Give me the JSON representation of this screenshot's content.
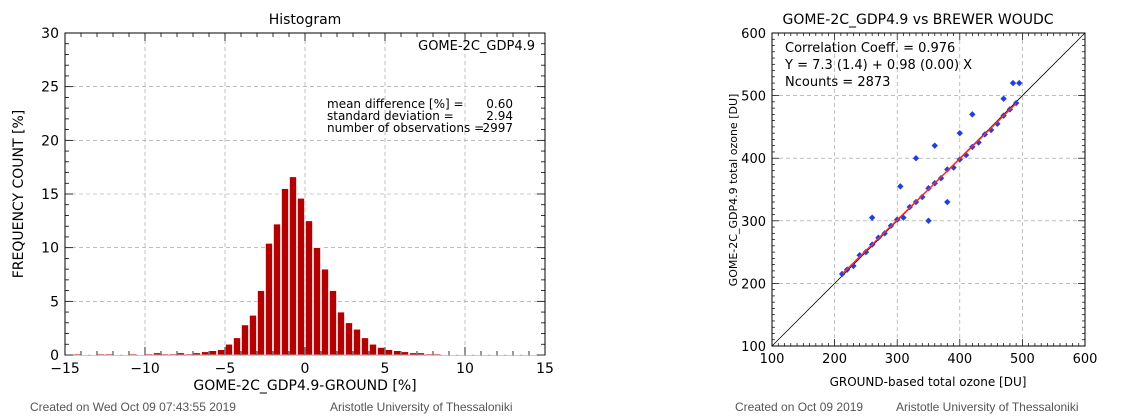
{
  "chart_data": [
    {
      "type": "bar",
      "title": "Histogram",
      "label": "GOME-2C_GDP4.9",
      "xlabel": "GOME-2C_GDP4.9-GROUND [%]",
      "ylabel": "FREQUENCY COUNT [%]",
      "xlim": [
        -15,
        15
      ],
      "ylim": [
        0,
        30
      ],
      "xticks": [
        -15,
        -10,
        -5,
        0,
        5,
        10,
        15
      ],
      "yticks": [
        0,
        5,
        10,
        15,
        20,
        25,
        30
      ],
      "bar_width": 0.5,
      "color": "#b30000",
      "x": [
        -14.75,
        -14.25,
        -13.75,
        -13.25,
        -12.75,
        -12.25,
        -11.75,
        -11.25,
        -10.75,
        -10.25,
        -9.75,
        -9.25,
        -8.75,
        -8.25,
        -7.75,
        -7.25,
        -6.75,
        -6.25,
        -5.75,
        -5.25,
        -4.75,
        -4.25,
        -3.75,
        -3.25,
        -2.75,
        -2.25,
        -1.75,
        -1.25,
        -0.75,
        -0.25,
        0.25,
        0.75,
        1.25,
        1.75,
        2.25,
        2.75,
        3.25,
        3.75,
        4.25,
        4.75,
        5.25,
        5.75,
        6.25,
        6.75,
        7.25,
        7.75,
        8.25,
        8.75,
        9.25,
        9.75,
        10.25,
        10.75,
        11.25,
        11.75,
        12.25,
        12.75,
        13.25,
        13.75,
        14.25,
        14.75
      ],
      "values": [
        0.05,
        0.1,
        0.05,
        0.05,
        0.1,
        0.1,
        0.05,
        0.05,
        0.1,
        0.05,
        0.1,
        0.2,
        0.1,
        0.1,
        0.2,
        0.1,
        0.2,
        0.3,
        0.4,
        0.5,
        1.0,
        1.6,
        2.8,
        3.7,
        6.0,
        10.4,
        12.2,
        15.5,
        16.6,
        14.6,
        12.5,
        10.0,
        8.0,
        6.0,
        4.0,
        3.0,
        2.4,
        1.6,
        1.0,
        0.7,
        0.5,
        0.4,
        0.3,
        0.2,
        0.2,
        0.1,
        0.1,
        0.05,
        0.05,
        0.05,
        0.05,
        0.05,
        0.05,
        0.05,
        0.05,
        0.05,
        0.05,
        0.05,
        0.05,
        0.05
      ],
      "stats": [
        {
          "label": "mean difference [%] =",
          "value": "0.60"
        },
        {
          "label": "standard deviation =",
          "value": "2.94"
        },
        {
          "label": "number of observations =",
          "value": "2997"
        }
      ],
      "footer_left": "Created on Wed Oct 09 07:43:55 2019",
      "footer_right": "Aristotle University of Thessaloniki"
    },
    {
      "type": "scatter",
      "title": "GOME-2C_GDP4.9  vs  BREWER WOUDC",
      "xlabel": "GROUND-based total ozone [DU]",
      "ylabel": "GOME-2C_GDP4.9 total ozone [DU]",
      "xlim": [
        100,
        600
      ],
      "ylim": [
        100,
        600
      ],
      "xticks": [
        100,
        200,
        300,
        400,
        500,
        600
      ],
      "yticks": [
        100,
        200,
        300,
        400,
        500,
        600
      ],
      "grid": true,
      "point_color": "#1f3fe0",
      "fit_color": "#ff2a2a",
      "fit": {
        "intercept": 7.3,
        "slope": 0.98,
        "x_range": [
          213,
          490
        ]
      },
      "points_sample": [
        [
          212,
          215
        ],
        [
          220,
          222
        ],
        [
          230,
          228
        ],
        [
          240,
          245
        ],
        [
          250,
          250
        ],
        [
          260,
          262
        ],
        [
          270,
          273
        ],
        [
          280,
          280
        ],
        [
          290,
          292
        ],
        [
          300,
          302
        ],
        [
          310,
          305
        ],
        [
          320,
          322
        ],
        [
          330,
          330
        ],
        [
          340,
          338
        ],
        [
          350,
          352
        ],
        [
          360,
          360
        ],
        [
          370,
          368
        ],
        [
          380,
          382
        ],
        [
          390,
          385
        ],
        [
          400,
          398
        ],
        [
          410,
          405
        ],
        [
          420,
          418
        ],
        [
          430,
          425
        ],
        [
          440,
          438
        ],
        [
          450,
          445
        ],
        [
          460,
          455
        ],
        [
          470,
          468
        ],
        [
          480,
          478
        ],
        [
          490,
          488
        ],
        [
          495,
          520
        ],
        [
          485,
          520
        ],
        [
          470,
          495
        ],
        [
          330,
          400
        ],
        [
          305,
          355
        ],
        [
          360,
          420
        ],
        [
          380,
          330
        ],
        [
          400,
          440
        ],
        [
          350,
          300
        ],
        [
          420,
          470
        ],
        [
          260,
          305
        ]
      ],
      "annotations": [
        "Correlation Coeff. = 0.976",
        "Y = 7.3 (1.4) + 0.98 (0.00) X",
        "Ncounts = 2873"
      ],
      "footer_left": "Created on Oct 09 2019",
      "footer_right": "Aristotle University of Thessaloniki"
    }
  ]
}
